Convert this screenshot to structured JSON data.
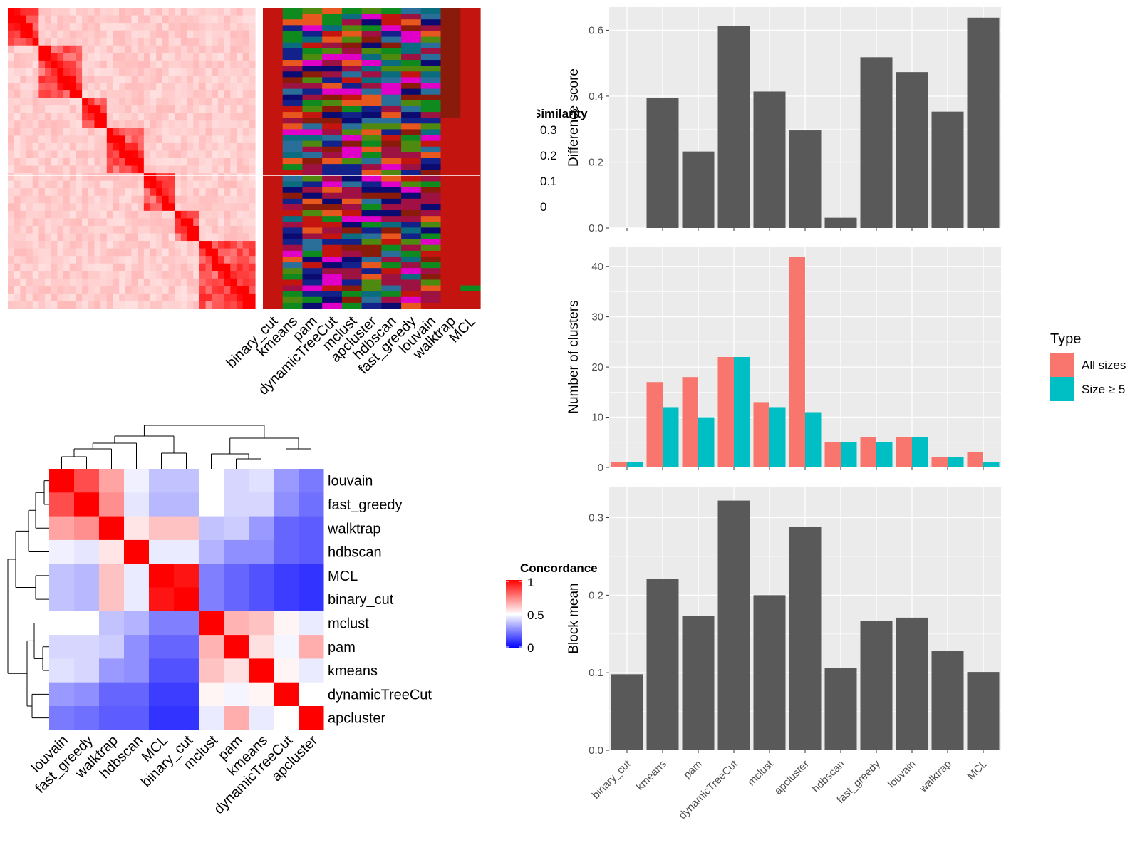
{
  "similarity_legend": {
    "title": "Similarity",
    "ticks": [
      "0.3",
      "0.2",
      "0.1",
      "0"
    ]
  },
  "concordance_legend": {
    "title": "Concordance",
    "ticks": [
      "1",
      "0.5",
      "0"
    ]
  },
  "type_legend": {
    "title": "Type",
    "entries": [
      "All sizes",
      "Size ≥ 5"
    ]
  },
  "colors": {
    "bar": "#595959",
    "all_sizes": "#F8766D",
    "size_ge_5": "#00BFC4",
    "panel_bg": "#EBEBEB",
    "grid": "#FFFFFF",
    "heat_high": "#FF0000",
    "heat_mid": "#FFFFFF",
    "heat_low": "#0000FF",
    "cluster_palette": [
      "#C4140F",
      "#E000C8",
      "#0A6C7E",
      "#12228A",
      "#0E8A1F",
      "#9C1240",
      "#E8581E",
      "#8A1A0A",
      "#4F8A10",
      "#0A0A70",
      "#2A6E9A",
      "#A01045"
    ]
  },
  "top_heatmap": {
    "column_labels": [
      "binary_cut",
      "kmeans",
      "pam",
      "dynamicTreeCut",
      "mclust",
      "apcluster",
      "hdbscan",
      "fast_greedy",
      "louvain",
      "walktrap",
      "MCL"
    ]
  },
  "chart_data": [
    {
      "type": "bar",
      "categories": [
        "binary_cut",
        "kmeans",
        "pam",
        "dynamicTreeCut",
        "mclust",
        "apcluster",
        "hdbscan",
        "fast_greedy",
        "louvain",
        "walktrap",
        "MCL"
      ],
      "values": [
        0,
        0.395,
        0.232,
        0.612,
        0.414,
        0.296,
        0.031,
        0.518,
        0.473,
        0.353,
        0.638
      ],
      "title": "",
      "xlabel": "",
      "ylabel": "Difference score",
      "ylim": [
        0,
        0.67
      ],
      "yticks": [
        "0.0",
        "0.2",
        "0.4",
        "0.6"
      ],
      "grid": true
    },
    {
      "type": "bar",
      "categories": [
        "binary_cut",
        "kmeans",
        "pam",
        "dynamicTreeCut",
        "mclust",
        "apcluster",
        "hdbscan",
        "fast_greedy",
        "louvain",
        "walktrap",
        "MCL"
      ],
      "series": [
        {
          "name": "All sizes",
          "values": [
            1,
            17,
            18,
            22,
            13,
            42,
            5,
            6,
            6,
            2,
            3
          ]
        },
        {
          "name": "Size ≥ 5",
          "values": [
            1,
            12,
            10,
            22,
            12,
            11,
            5,
            5,
            6,
            2,
            1
          ]
        }
      ],
      "title": "",
      "xlabel": "",
      "ylabel": "Number of clusters",
      "ylim": [
        0,
        44
      ],
      "yticks": [
        "0",
        "10",
        "20",
        "30",
        "40"
      ],
      "grid": true,
      "legend": "right"
    },
    {
      "type": "bar",
      "categories": [
        "binary_cut",
        "kmeans",
        "pam",
        "dynamicTreeCut",
        "mclust",
        "apcluster",
        "hdbscan",
        "fast_greedy",
        "louvain",
        "walktrap",
        "MCL"
      ],
      "values": [
        0.098,
        0.221,
        0.173,
        0.322,
        0.2,
        0.288,
        0.106,
        0.167,
        0.171,
        0.128,
        0.101
      ],
      "title": "",
      "xlabel": "",
      "ylabel": "Block mean",
      "ylim": [
        0,
        0.34
      ],
      "yticks": [
        "0.0",
        "0.1",
        "0.2",
        "0.3"
      ],
      "grid": true
    },
    {
      "type": "heatmap",
      "rows": [
        "louvain",
        "fast_greedy",
        "walktrap",
        "hdbscan",
        "MCL",
        "binary_cut",
        "mclust",
        "pam",
        "kmeans",
        "dynamicTreeCut",
        "apcluster"
      ],
      "columns": [
        "louvain",
        "fast_greedy",
        "walktrap",
        "hdbscan",
        "MCL",
        "binary_cut",
        "mclust",
        "pam",
        "kmeans",
        "dynamicTreeCut",
        "apcluster"
      ],
      "values": [
        [
          1.0,
          0.85,
          0.68,
          0.47,
          0.38,
          0.38,
          0.5,
          0.42,
          0.44,
          0.3,
          0.24
        ],
        [
          0.85,
          1.0,
          0.72,
          0.45,
          0.36,
          0.36,
          0.5,
          0.42,
          0.42,
          0.28,
          0.22
        ],
        [
          0.68,
          0.72,
          1.0,
          0.55,
          0.62,
          0.62,
          0.38,
          0.4,
          0.3,
          0.2,
          0.18
        ],
        [
          0.47,
          0.45,
          0.55,
          1.0,
          0.46,
          0.46,
          0.35,
          0.28,
          0.28,
          0.2,
          0.18
        ],
        [
          0.38,
          0.36,
          0.62,
          0.46,
          1.0,
          0.96,
          0.25,
          0.2,
          0.16,
          0.12,
          0.1
        ],
        [
          0.38,
          0.36,
          0.62,
          0.46,
          0.96,
          1.0,
          0.25,
          0.2,
          0.16,
          0.12,
          0.1
        ],
        [
          0.5,
          0.5,
          0.38,
          0.35,
          0.25,
          0.25,
          1.0,
          0.65,
          0.62,
          0.52,
          0.46
        ],
        [
          0.42,
          0.42,
          0.4,
          0.28,
          0.2,
          0.2,
          0.65,
          1.0,
          0.56,
          0.48,
          0.66
        ],
        [
          0.44,
          0.42,
          0.3,
          0.28,
          0.16,
          0.16,
          0.62,
          0.56,
          1.0,
          0.52,
          0.46
        ],
        [
          0.3,
          0.28,
          0.2,
          0.2,
          0.12,
          0.12,
          0.52,
          0.48,
          0.52,
          1.0,
          0.5
        ],
        [
          0.24,
          0.22,
          0.18,
          0.18,
          0.1,
          0.1,
          0.46,
          0.66,
          0.46,
          0.5,
          1.0
        ]
      ],
      "scale": [
        0,
        1
      ]
    }
  ]
}
